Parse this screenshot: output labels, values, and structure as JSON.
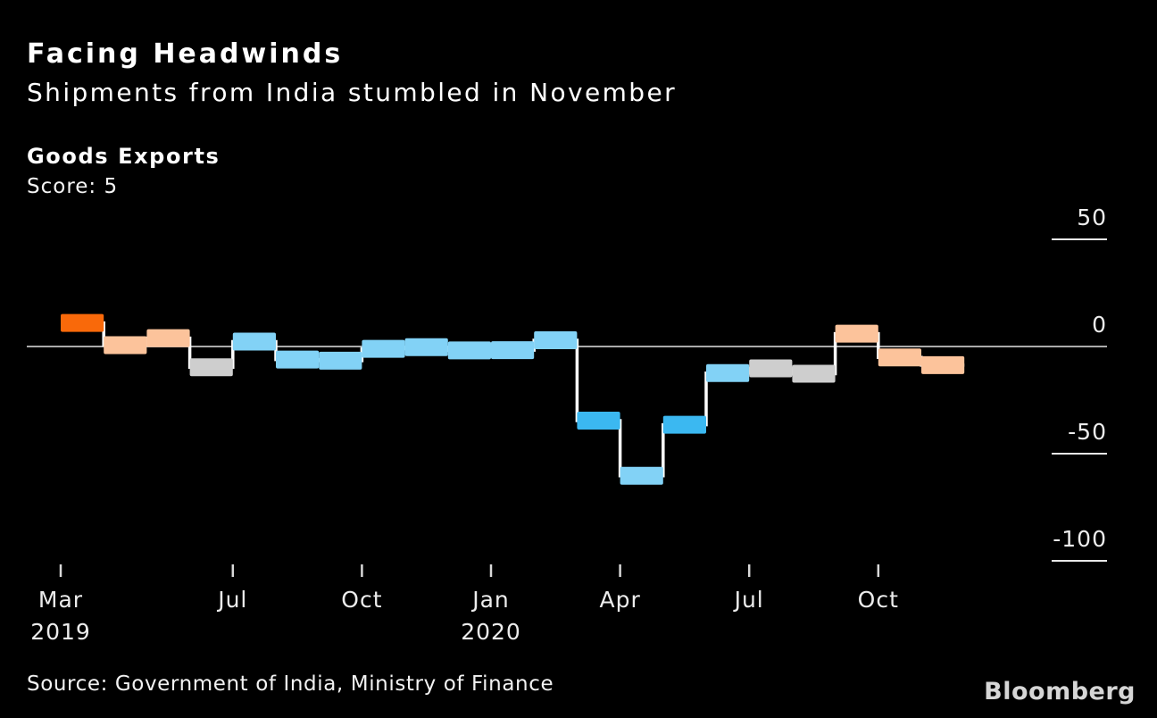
{
  "header": {
    "title": "Facing Headwinds",
    "subtitle": "Shipments from India stumbled in November"
  },
  "panel": {
    "title": "Goods Exports",
    "score_label": "Score: 5"
  },
  "footer": {
    "source": "Source: Government of India, Ministry of Finance",
    "brand": "Bloomberg"
  },
  "chart_data": {
    "type": "bar",
    "subtype": "step-segment-series",
    "title": "Goods Exports",
    "xlabel": "",
    "ylabel": "",
    "ylim": [
      -110,
      55
    ],
    "grid": "right-edge-ticks-only",
    "legend": "none",
    "background_color": "#000000",
    "step_line_color": "#ffffff",
    "zero_line_color": "#ababab",
    "axis_text_color": "#ececec",
    "palette_semantics": {
      "strongly_above_normal": "#f9690a",
      "above_normal": "#fcc39b",
      "neutral": "#cecece",
      "below_normal": "#82d2f6",
      "strongly_below_normal": "#3bb8f1"
    },
    "categories": [
      "Mar 2019",
      "Apr 2019",
      "May 2019",
      "Jun 2019",
      "Jul 2019",
      "Aug 2019",
      "Sep 2019",
      "Oct 2019",
      "Nov 2019",
      "Dec 2019",
      "Jan 2020",
      "Feb 2020",
      "Mar 2020",
      "Apr 2020",
      "May 2020",
      "Jun 2020",
      "Jul 2020",
      "Aug 2020",
      "Sep 2020",
      "Oct 2020",
      "Nov 2020"
    ],
    "values": [
      11.0,
      0.6,
      3.9,
      -9.7,
      2.3,
      -6.1,
      -6.6,
      -1.1,
      -0.3,
      -1.8,
      -1.7,
      2.9,
      -34.6,
      -60.3,
      -36.5,
      -12.4,
      -10.2,
      -12.7,
      6.0,
      -5.1,
      -8.7
    ],
    "segment_colors": [
      "#f9690a",
      "#fcc39b",
      "#fcc39b",
      "#cecece",
      "#82d2f6",
      "#82d2f6",
      "#82d2f6",
      "#82d2f6",
      "#82d2f6",
      "#82d2f6",
      "#82d2f6",
      "#82d2f6",
      "#3bb8f1",
      "#82d2f6",
      "#3bb8f1",
      "#82d2f6",
      "#cecece",
      "#cecece",
      "#fcc39b",
      "#fcc39b",
      "#fcc39b"
    ],
    "y_ticks": [
      {
        "value": 50,
        "label": "50",
        "full_line": false
      },
      {
        "value": 0,
        "label": "0",
        "full_line": true
      },
      {
        "value": -50,
        "label": "-50",
        "full_line": false
      },
      {
        "value": -100,
        "label": "-100",
        "full_line": false
      }
    ],
    "x_ticks": [
      {
        "month_index": 0,
        "label": "Mar",
        "year": "2019"
      },
      {
        "month_index": 4,
        "label": "Jul",
        "year": ""
      },
      {
        "month_index": 7,
        "label": "Oct",
        "year": ""
      },
      {
        "month_index": 10,
        "label": "Jan",
        "year": "2020"
      },
      {
        "month_index": 13,
        "label": "Apr",
        "year": ""
      },
      {
        "month_index": 16,
        "label": "Jul",
        "year": ""
      },
      {
        "month_index": 19,
        "label": "Oct",
        "year": ""
      }
    ]
  }
}
